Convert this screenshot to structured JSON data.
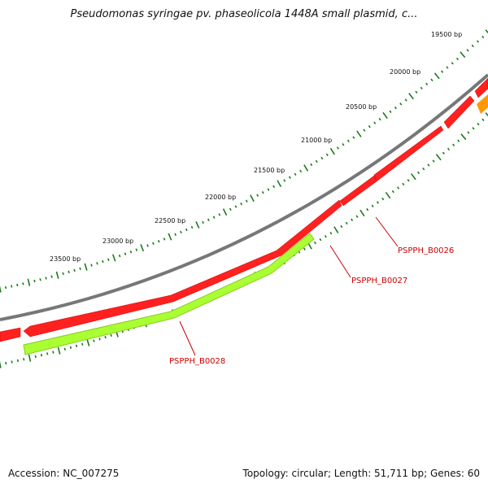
{
  "title": "Pseudomonas syringae pv. phaseolicola 1448A small plasmid, c...",
  "footer": {
    "accession": "Accession: NC_007275",
    "summary": "Topology: circular; Length: 51,711 bp; Genes: 60"
  },
  "scale_labels": [
    "19500 bp",
    "20000 bp",
    "20500 bp",
    "21000 bp",
    "21500 bp",
    "22000 bp",
    "22500 bp",
    "23000 bp",
    "23500 bp"
  ],
  "genes": [
    {
      "name": "PSPPH_B0026"
    },
    {
      "name": "PSPPH_B0027"
    },
    {
      "name": "PSPPH_B0028"
    }
  ],
  "colors": {
    "backbone": "#7a7a7a",
    "gene_red": "#ff1a1a",
    "gene_green": "#aaff33",
    "gene_orange": "#ff9900",
    "ticks": "#1a7a1a",
    "label_red": "#cc0000"
  }
}
